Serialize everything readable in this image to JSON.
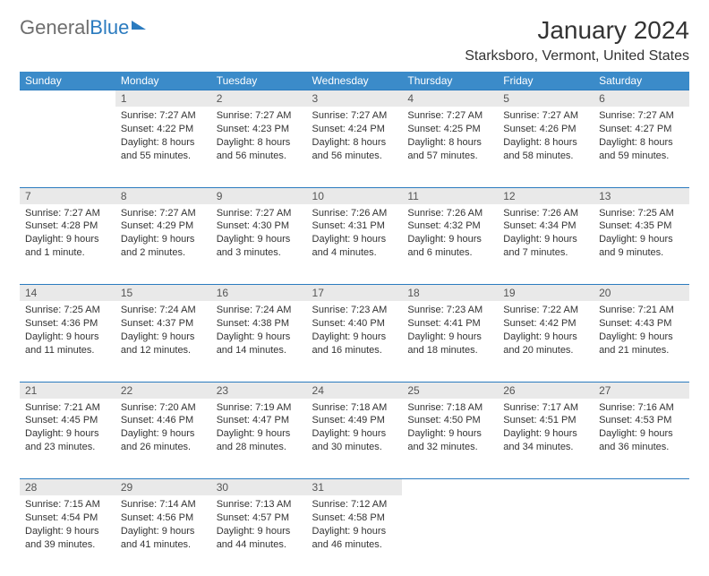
{
  "brand": {
    "part1": "General",
    "part2": "Blue"
  },
  "title": "January 2024",
  "location": "Starksboro, Vermont, United States",
  "colors": {
    "header_bg": "#3b8bc9",
    "header_text": "#ffffff",
    "daynum_bg": "#e9e9e9",
    "border": "#2b7bbf",
    "body_text": "#333333",
    "logo_gray": "#6e6e6e"
  },
  "font": {
    "family": "Arial",
    "header_size_pt": 9,
    "title_size_pt": 21,
    "body_size_pt": 8
  },
  "day_headers": [
    "Sunday",
    "Monday",
    "Tuesday",
    "Wednesday",
    "Thursday",
    "Friday",
    "Saturday"
  ],
  "weeks": [
    {
      "nums": [
        "",
        "1",
        "2",
        "3",
        "4",
        "5",
        "6"
      ],
      "cells": [
        "",
        "Sunrise: 7:27 AM\nSunset: 4:22 PM\nDaylight: 8 hours and 55 minutes.",
        "Sunrise: 7:27 AM\nSunset: 4:23 PM\nDaylight: 8 hours and 56 minutes.",
        "Sunrise: 7:27 AM\nSunset: 4:24 PM\nDaylight: 8 hours and 56 minutes.",
        "Sunrise: 7:27 AM\nSunset: 4:25 PM\nDaylight: 8 hours and 57 minutes.",
        "Sunrise: 7:27 AM\nSunset: 4:26 PM\nDaylight: 8 hours and 58 minutes.",
        "Sunrise: 7:27 AM\nSunset: 4:27 PM\nDaylight: 8 hours and 59 minutes."
      ]
    },
    {
      "nums": [
        "7",
        "8",
        "9",
        "10",
        "11",
        "12",
        "13"
      ],
      "cells": [
        "Sunrise: 7:27 AM\nSunset: 4:28 PM\nDaylight: 9 hours and 1 minute.",
        "Sunrise: 7:27 AM\nSunset: 4:29 PM\nDaylight: 9 hours and 2 minutes.",
        "Sunrise: 7:27 AM\nSunset: 4:30 PM\nDaylight: 9 hours and 3 minutes.",
        "Sunrise: 7:26 AM\nSunset: 4:31 PM\nDaylight: 9 hours and 4 minutes.",
        "Sunrise: 7:26 AM\nSunset: 4:32 PM\nDaylight: 9 hours and 6 minutes.",
        "Sunrise: 7:26 AM\nSunset: 4:34 PM\nDaylight: 9 hours and 7 minutes.",
        "Sunrise: 7:25 AM\nSunset: 4:35 PM\nDaylight: 9 hours and 9 minutes."
      ]
    },
    {
      "nums": [
        "14",
        "15",
        "16",
        "17",
        "18",
        "19",
        "20"
      ],
      "cells": [
        "Sunrise: 7:25 AM\nSunset: 4:36 PM\nDaylight: 9 hours and 11 minutes.",
        "Sunrise: 7:24 AM\nSunset: 4:37 PM\nDaylight: 9 hours and 12 minutes.",
        "Sunrise: 7:24 AM\nSunset: 4:38 PM\nDaylight: 9 hours and 14 minutes.",
        "Sunrise: 7:23 AM\nSunset: 4:40 PM\nDaylight: 9 hours and 16 minutes.",
        "Sunrise: 7:23 AM\nSunset: 4:41 PM\nDaylight: 9 hours and 18 minutes.",
        "Sunrise: 7:22 AM\nSunset: 4:42 PM\nDaylight: 9 hours and 20 minutes.",
        "Sunrise: 7:21 AM\nSunset: 4:43 PM\nDaylight: 9 hours and 21 minutes."
      ]
    },
    {
      "nums": [
        "21",
        "22",
        "23",
        "24",
        "25",
        "26",
        "27"
      ],
      "cells": [
        "Sunrise: 7:21 AM\nSunset: 4:45 PM\nDaylight: 9 hours and 23 minutes.",
        "Sunrise: 7:20 AM\nSunset: 4:46 PM\nDaylight: 9 hours and 26 minutes.",
        "Sunrise: 7:19 AM\nSunset: 4:47 PM\nDaylight: 9 hours and 28 minutes.",
        "Sunrise: 7:18 AM\nSunset: 4:49 PM\nDaylight: 9 hours and 30 minutes.",
        "Sunrise: 7:18 AM\nSunset: 4:50 PM\nDaylight: 9 hours and 32 minutes.",
        "Sunrise: 7:17 AM\nSunset: 4:51 PM\nDaylight: 9 hours and 34 minutes.",
        "Sunrise: 7:16 AM\nSunset: 4:53 PM\nDaylight: 9 hours and 36 minutes."
      ]
    },
    {
      "nums": [
        "28",
        "29",
        "30",
        "31",
        "",
        "",
        ""
      ],
      "cells": [
        "Sunrise: 7:15 AM\nSunset: 4:54 PM\nDaylight: 9 hours and 39 minutes.",
        "Sunrise: 7:14 AM\nSunset: 4:56 PM\nDaylight: 9 hours and 41 minutes.",
        "Sunrise: 7:13 AM\nSunset: 4:57 PM\nDaylight: 9 hours and 44 minutes.",
        "Sunrise: 7:12 AM\nSunset: 4:58 PM\nDaylight: 9 hours and 46 minutes.",
        "",
        "",
        ""
      ]
    }
  ]
}
